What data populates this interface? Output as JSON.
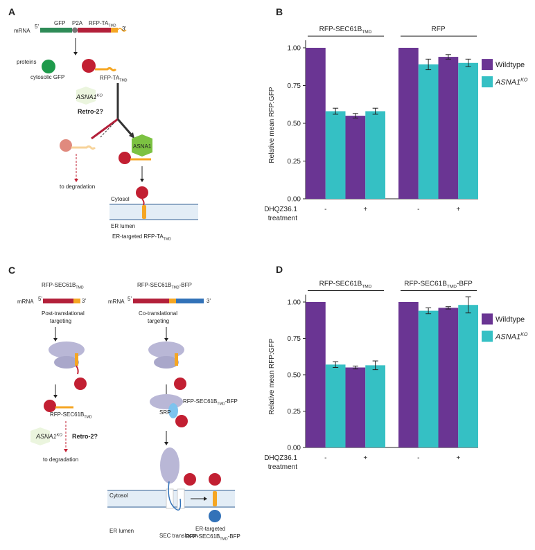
{
  "diagram_a": {
    "panel": "A",
    "texts": [
      [
        "mRNA"
      ],
      [
        "5'"
      ],
      [
        "GFP"
      ],
      [
        "P2A"
      ],
      [
        "RFP-TA",
        {
          "sub": "TMD"
        }
      ],
      [
        "3'"
      ],
      [
        "proteins"
      ],
      [
        "cytosolic GFP"
      ],
      [
        "RFP-TA",
        {
          "sub": "TMD"
        }
      ],
      [
        "ASNA1",
        {
          "sup": "KO"
        }
      ],
      [
        "Retro-2?"
      ],
      [
        "ASNA1"
      ],
      [
        "to degradation"
      ],
      [
        "Cytosol"
      ],
      [
        "ER lumen"
      ],
      [
        "ER-targeted RFP-TA",
        {
          "sub": "TMD"
        }
      ]
    ]
  },
  "diagram_c": {
    "panel": "C",
    "texts": [
      [
        "RFP-SEC61B",
        {
          "sub": "TMD"
        }
      ],
      [
        "mRNA"
      ],
      [
        "5'"
      ],
      [
        "3'"
      ],
      [
        "Post-translational"
      ],
      [
        "targeting"
      ],
      [
        "RFP-SEC61B",
        {
          "sub": "TMD"
        }
      ],
      [
        "ASNA1",
        {
          "sup": "KO"
        }
      ],
      [
        "Retro-2?"
      ],
      [
        "to degradation"
      ],
      [
        "RFP-SEC61B",
        {
          "sub": "TMD"
        },
        "-BFP"
      ],
      [
        "mRNA"
      ],
      [
        "5'"
      ],
      [
        "3'"
      ],
      [
        "Co-translational"
      ],
      [
        "targeting"
      ],
      [
        "RFP-SEC61B",
        {
          "sub": "TMD"
        },
        "-BFP"
      ],
      [
        "SRP"
      ],
      [
        "Cytosol"
      ],
      [
        "ER lumen"
      ],
      [
        "SEC translocon"
      ],
      [
        "ER-targeted"
      ],
      [
        "RFP-SEC61B",
        {
          "sub": "TMD"
        },
        "-BFP"
      ]
    ]
  },
  "chart_data": [
    {
      "type": "bar",
      "panel": "B",
      "ylabel": "Relative mean RFP:GFP",
      "xlabel": [
        "DHQZ36.1",
        "treatment"
      ],
      "groups": [
        [
          "RFP-SEC61B",
          {
            "sub": "TMD"
          }
        ],
        [
          "RFP"
        ]
      ],
      "categories": [
        "-",
        "+",
        "-",
        "+"
      ],
      "series": [
        {
          "name": [
            "Wildtype"
          ],
          "color": "#6a3593",
          "values": [
            1.0,
            0.55,
            1.0,
            0.94
          ],
          "errors": [
            0,
            0.015,
            0,
            0.015
          ]
        },
        {
          "name": [
            "ASNA1",
            {
              "sup": "KO"
            }
          ],
          "color": "#35c0c4",
          "values": [
            0.58,
            0.58,
            0.89,
            0.9
          ],
          "errors": [
            0.02,
            0.02,
            0.035,
            0.025
          ]
        }
      ],
      "ylim": [
        0,
        1.05
      ],
      "yticks": [
        {
          "value": 0,
          "label": "0.00"
        },
        {
          "value": 0.25,
          "label": "0.25"
        },
        {
          "value": 0.5,
          "label": "0.50"
        },
        {
          "value": 0.75,
          "label": "0.75"
        },
        {
          "value": 1,
          "label": "1.00"
        }
      ]
    },
    {
      "type": "bar",
      "panel": "D",
      "ylabel": "Relative mean RFP:GFP",
      "xlabel": [
        "DHQZ36.1",
        "treatment"
      ],
      "groups": [
        [
          "RFP-SEC61B",
          {
            "sub": "TMD"
          }
        ],
        [
          "RFP-SEC61B",
          {
            "sub": "TMD"
          },
          "-BFP"
        ]
      ],
      "categories": [
        "-",
        "+",
        "-",
        "+"
      ],
      "series": [
        {
          "name": [
            "Wildtype"
          ],
          "color": "#6a3593",
          "values": [
            1.0,
            0.55,
            1.0,
            0.96
          ],
          "errors": [
            0,
            0.01,
            0,
            0.008
          ]
        },
        {
          "name": [
            "ASNA1",
            {
              "sup": "KO"
            }
          ],
          "color": "#35c0c4",
          "values": [
            0.57,
            0.565,
            0.94,
            0.98
          ],
          "errors": [
            0.02,
            0.03,
            0.02,
            0.055
          ]
        }
      ],
      "ylim": [
        0,
        1.05
      ],
      "yticks": [
        {
          "value": 0,
          "label": "0.00"
        },
        {
          "value": 0.25,
          "label": "0.25"
        },
        {
          "value": 0.5,
          "label": "0.50"
        },
        {
          "value": 0.75,
          "label": "0.75"
        },
        {
          "value": 1,
          "label": "1.00"
        }
      ]
    }
  ]
}
